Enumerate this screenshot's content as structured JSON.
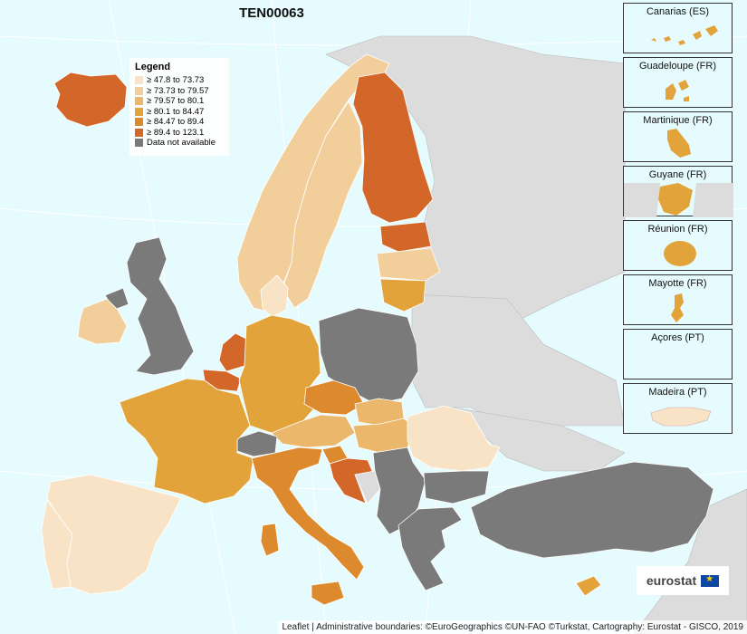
{
  "title": "TEN00063",
  "legend": {
    "title": "Legend",
    "items": [
      {
        "label": "≥ 47.8 to 73.73",
        "color": "#f9e3c6"
      },
      {
        "label": "≥ 73.73 to 79.57",
        "color": "#f2cf9a"
      },
      {
        "label": "≥ 79.57 to 80.1",
        "color": "#eab76b"
      },
      {
        "label": "≥ 80.1 to 84.47",
        "color": "#e2a33b"
      },
      {
        "label": "≥ 84.47 to 89.4",
        "color": "#dc8a2d"
      },
      {
        "label": "≥ 89.4 to 123.1",
        "color": "#d3672a"
      },
      {
        "label": "Data not available",
        "color": "#7a7a7a"
      }
    ]
  },
  "insets": [
    {
      "label": "Canarias (ES)"
    },
    {
      "label": "Guadeloupe (FR)"
    },
    {
      "label": "Martinique (FR)"
    },
    {
      "label": "Guyane (FR)"
    },
    {
      "label": "Réunion (FR)"
    },
    {
      "label": "Mayotte (FR)"
    },
    {
      "label": "Açores (PT)"
    },
    {
      "label": "Madeira (PT)"
    }
  ],
  "logo": "eurostat",
  "attribution": "Leaflet | Administrative boundaries: ©EuroGeographics ©UN-FAO ©Turkstat, Cartography: Eurostat - GISCO, 2019"
}
